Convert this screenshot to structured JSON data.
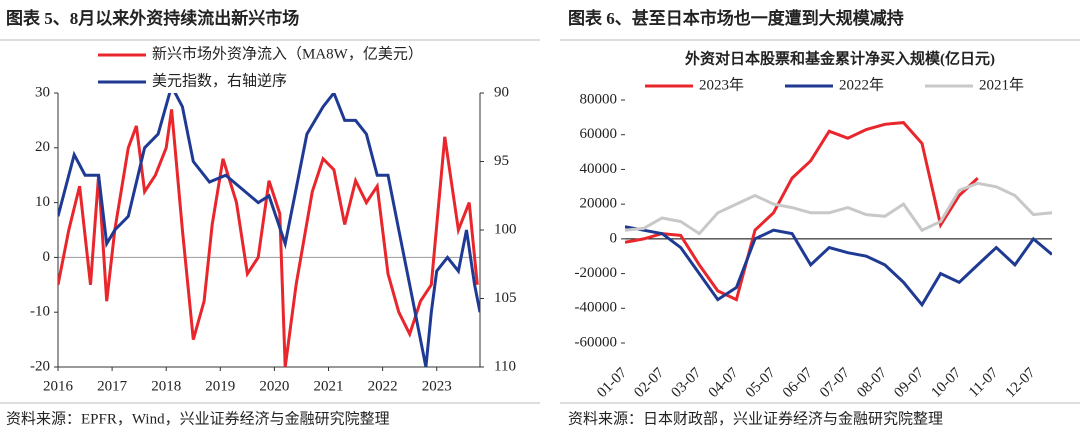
{
  "chart_data": [
    {
      "type": "line",
      "title": "图表 5、8月以来外资持续流出新兴市场",
      "source": "资料来源：EPFR，Wind，兴业证券经济与金融研究院整理",
      "xlim": [
        2016,
        2023.8
      ],
      "xticks": [
        2016,
        2017,
        2018,
        2019,
        2020,
        2021,
        2022,
        2023
      ],
      "ylim": [
        -20,
        30
      ],
      "yticks": [
        -20,
        -10,
        0,
        10,
        20,
        30
      ],
      "y2lim": [
        110,
        90
      ],
      "y2ticks": [
        90,
        95,
        100,
        105,
        110
      ],
      "legend": "top-left",
      "series": [
        {
          "name": "新兴市场外资净流入（MA8W，亿美元）",
          "color": "#e8262b",
          "x": [
            2016.0,
            2016.2,
            2016.4,
            2016.6,
            2016.75,
            2016.9,
            2017.05,
            2017.3,
            2017.45,
            2017.6,
            2017.8,
            2018.0,
            2018.1,
            2018.3,
            2018.5,
            2018.7,
            2018.85,
            2019.05,
            2019.3,
            2019.5,
            2019.7,
            2019.9,
            2020.1,
            2020.2,
            2020.4,
            2020.7,
            2020.9,
            2021.1,
            2021.3,
            2021.5,
            2021.7,
            2021.9,
            2022.1,
            2022.3,
            2022.5,
            2022.7,
            2022.9,
            2023.15,
            2023.4,
            2023.6,
            2023.75
          ],
          "values": [
            -5,
            5,
            13,
            -5,
            15,
            -8,
            5,
            20,
            24,
            12,
            15,
            20,
            27,
            5,
            -15,
            -8,
            6,
            18,
            10,
            -3,
            0,
            14,
            8,
            -20,
            -5,
            12,
            18,
            16,
            6,
            14,
            10,
            13,
            -3,
            -10,
            -14,
            -8,
            -5,
            22,
            5,
            10,
            -5
          ]
        },
        {
          "name": "美元指数，右轴逆序",
          "color": "#1f3a93",
          "axis": "y2",
          "x": [
            2016.0,
            2016.3,
            2016.5,
            2016.75,
            2016.9,
            2017.05,
            2017.3,
            2017.6,
            2017.85,
            2018.1,
            2018.3,
            2018.5,
            2018.8,
            2019.1,
            2019.4,
            2019.7,
            2019.9,
            2020.2,
            2020.4,
            2020.6,
            2020.9,
            2021.1,
            2021.3,
            2021.5,
            2021.7,
            2021.9,
            2022.1,
            2022.3,
            2022.5,
            2022.8,
            2022.9,
            2023.0,
            2023.2,
            2023.4,
            2023.55,
            2023.7,
            2023.8
          ],
          "values": [
            99,
            94.5,
            96,
            96,
            101,
            100,
            99,
            94,
            93,
            89.5,
            91,
            95,
            96.5,
            96,
            97,
            98,
            97.5,
            101,
            97,
            93,
            91,
            90,
            92,
            92,
            93,
            96,
            96,
            100,
            104,
            110,
            106,
            103,
            102,
            103,
            100,
            104,
            106
          ]
        }
      ]
    },
    {
      "type": "line",
      "title": "图表 6、甚至日本市场也一度遭到大规模减持",
      "subtitle": "外资对日本股票和基金累计净买入规模(亿日元)",
      "source": "资料来源：日本财政部，兴业证券经济与金融研究院整理",
      "categories": [
        "01-07",
        null,
        "02-07",
        null,
        "03-07",
        null,
        "04-07",
        null,
        "05-07",
        null,
        "06-07",
        null,
        "07-07",
        null,
        "08-07",
        null,
        "09-07",
        null,
        "10-07",
        null,
        "11-07",
        null,
        "12-07",
        null
      ],
      "ylim": [
        -60000,
        80000
      ],
      "yticks": [
        -60000,
        -40000,
        -20000,
        0,
        20000,
        40000,
        60000,
        80000
      ],
      "legend": "top",
      "series": [
        {
          "name": "2023年",
          "color": "#e8262b",
          "values": [
            -2000,
            0,
            3000,
            2000,
            -15000,
            -30000,
            -35000,
            5000,
            15000,
            35000,
            45000,
            62000,
            58000,
            63000,
            66000,
            67000,
            55000,
            8000,
            25000,
            35000,
            null,
            null,
            null,
            null
          ]
        },
        {
          "name": "2022年",
          "color": "#1f3a93",
          "values": [
            7000,
            5000,
            3000,
            -5000,
            -20000,
            -35000,
            -28000,
            0,
            5000,
            3000,
            -15000,
            -5000,
            -8000,
            -10000,
            -15000,
            -25000,
            -38000,
            -20000,
            -25000,
            -15000,
            -5000,
            -15000,
            0,
            -9000
          ]
        },
        {
          "name": "2021年",
          "color": "#c8c8c8",
          "values": [
            5000,
            6000,
            12000,
            10000,
            3000,
            15000,
            20000,
            25000,
            20000,
            18000,
            15000,
            15000,
            18000,
            14000,
            13000,
            20000,
            5000,
            10000,
            28000,
            32000,
            30000,
            25000,
            14000,
            15000
          ]
        }
      ]
    }
  ]
}
